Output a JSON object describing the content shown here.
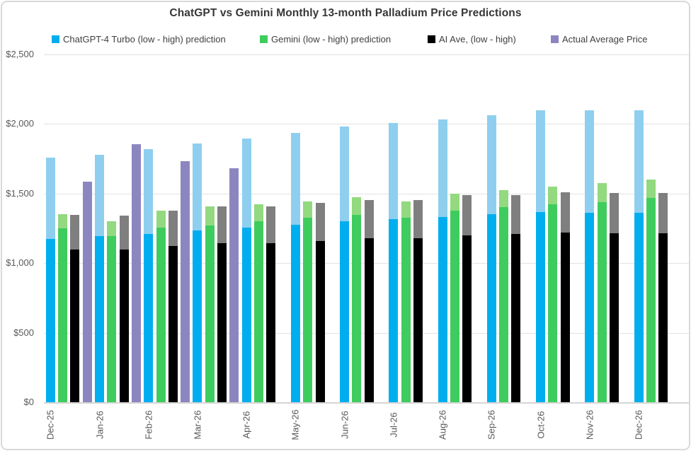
{
  "title": "ChatGPT vs Gemini Monthly 13-month Palladium Price Predictions",
  "chart_data": {
    "type": "bar",
    "subtype": "grouped-range-columns",
    "title": "ChatGPT vs Gemini Monthly 13-month Palladium Price Predictions",
    "categories": [
      "Dec-25",
      "Jan-26",
      "Feb-26",
      "Mar-26",
      "Apr-26",
      "May-26",
      "Jun-26",
      "Jul-26",
      "Aug-26",
      "Sep-26",
      "Oct-26",
      "Nov-26",
      "Dec-26"
    ],
    "ylim": [
      0,
      2500
    ],
    "grid": "horizontal",
    "legend_position": "top",
    "y_axis": {
      "tick_values": [
        2500,
        2000,
        1500,
        1000,
        500,
        0
      ],
      "tick_labels": [
        "$2,500",
        "$2,000",
        "$1,500",
        "$1,000",
        "$500",
        "$0"
      ]
    },
    "series": [
      {
        "name": "ChatGPT-4 Turbo (low - high) prediction",
        "key": "chatgpt4-turbo",
        "style": "range",
        "low_color": "#00AEEF",
        "high_color": "#8ECFEF",
        "low": [
          1175,
          1195,
          1210,
          1235,
          1255,
          1275,
          1300,
          1315,
          1330,
          1350,
          1365,
          1360,
          1360
        ],
        "high": [
          1760,
          1780,
          1820,
          1860,
          1895,
          1935,
          1980,
          2005,
          2035,
          2065,
          2100,
          2100,
          2100
        ]
      },
      {
        "name": "Gemini (low - high) prediction",
        "key": "gemini",
        "style": "range",
        "low_color": "#3FCC5E",
        "high_color": "#92D97F",
        "low": [
          1250,
          1195,
          1255,
          1270,
          1300,
          1325,
          1345,
          1325,
          1375,
          1400,
          1425,
          1440,
          1470
        ],
        "high": [
          1350,
          1300,
          1375,
          1405,
          1425,
          1445,
          1475,
          1445,
          1500,
          1525,
          1550,
          1575,
          1600
        ]
      },
      {
        "name": "AI Ave, (low - high)",
        "key": "ai-ave",
        "style": "range",
        "low_color": "#000000",
        "high_color": "#7F7F7F",
        "low": [
          1100,
          1100,
          1125,
          1145,
          1145,
          1160,
          1180,
          1180,
          1200,
          1210,
          1220,
          1215,
          1215
        ],
        "high": [
          1345,
          1340,
          1375,
          1405,
          1405,
          1435,
          1455,
          1455,
          1490,
          1490,
          1510,
          1505,
          1505
        ]
      },
      {
        "name": "Actual Average Price",
        "key": "actual-average-price",
        "style": "single",
        "color": "#8C86C0",
        "values": [
          1585,
          1855,
          1735,
          1680,
          null,
          null,
          null,
          null,
          null,
          null,
          null,
          null,
          null
        ]
      }
    ]
  }
}
